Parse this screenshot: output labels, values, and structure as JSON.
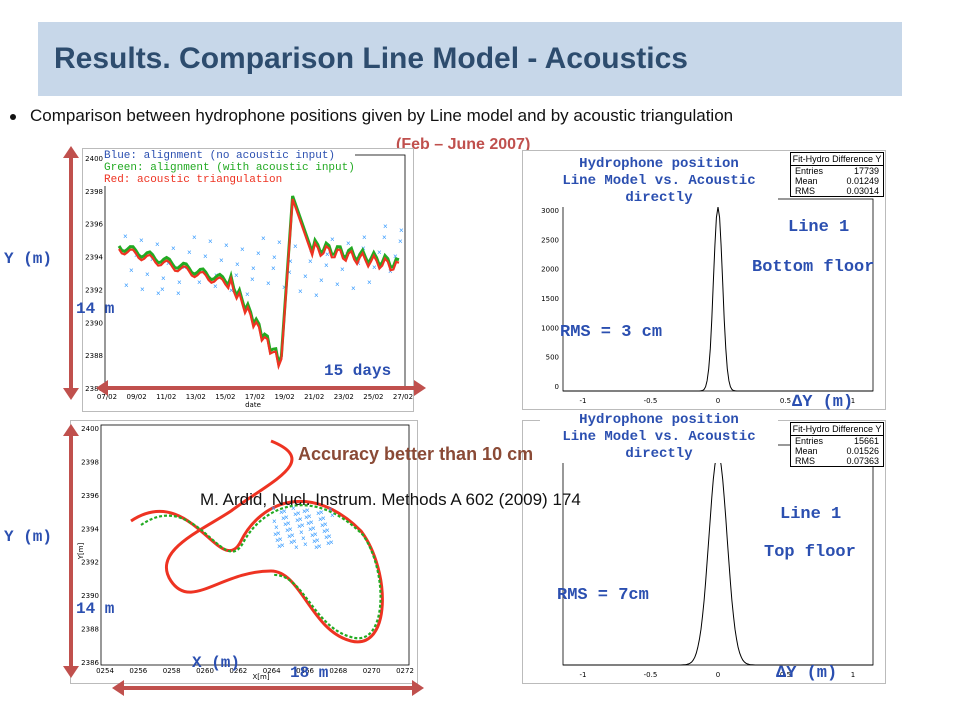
{
  "slide": {
    "title": "Results. Comparison Line Model - Acoustics",
    "bullet": "Comparison between hydrophone positions given by Line model and by acoustic triangulation",
    "period": "(Feb – June 2007)",
    "accuracy": "Accuracy better than 10 cm",
    "citation": "M. Ardid, Nucl. Instrum. Methods A 602 (2009) 174"
  },
  "top_left_plot": {
    "legend": [
      "Blue: alignment (no acoustic input)",
      "Green: alignment (with acoustic input)",
      "Red: acoustic triangulation"
    ],
    "y_label": "Y (m)",
    "span_label": "14 m",
    "days_label": "15 days",
    "x_axis_title": "date",
    "y_ticks": [
      "2400",
      "2398",
      "2396",
      "2394",
      "2392",
      "2390",
      "2388",
      "2386"
    ],
    "x_ticks": [
      "07/02",
      "09/02",
      "11/02",
      "13/02",
      "15/02",
      "17/02",
      "19/02",
      "21/02",
      "23/02",
      "25/02",
      "27/02"
    ]
  },
  "bottom_left_plot": {
    "y_label": "Y (m)",
    "span_label": "14 m",
    "x_label": "X (m)",
    "x_span_label": "18 m",
    "x_axis_title": "X[m]",
    "y_axis_title": "Y[m]",
    "y_ticks": [
      "2400",
      "2398",
      "2396",
      "2394",
      "2392",
      "2390",
      "2388",
      "2386"
    ],
    "x_ticks": [
      "0254",
      "0256",
      "0258",
      "0260",
      "0262",
      "0264",
      "0266",
      "0268",
      "0270",
      "0272"
    ]
  },
  "histogram_top": {
    "caption": [
      "Hydrophone position",
      "Line Model vs. Acoustic",
      "directly"
    ],
    "stats_title": "Fit-Hydro Difference Y",
    "stats": [
      [
        "Entries",
        "17739"
      ],
      [
        "Mean",
        "0.01249"
      ],
      [
        "RMS",
        "0.03014"
      ]
    ],
    "rms_label": "RMS = 3 cm",
    "line_label": "Line 1",
    "floor_label": "Bottom floor",
    "x_label": "∆Y (m)",
    "y_ticks": [
      "3000",
      "2500",
      "2000",
      "1500",
      "1000",
      "500",
      "0"
    ],
    "x_ticks": [
      "-1",
      "-0.5",
      "0",
      "0.5",
      "1"
    ]
  },
  "histogram_bottom": {
    "caption": [
      "Hydrophone position",
      "Line Model vs. Acoustic",
      "directly"
    ],
    "stats_title": "Fit-Hydro Difference Y",
    "stats": [
      [
        "Entries",
        "15661"
      ],
      [
        "Mean",
        "0.01526"
      ],
      [
        "RMS",
        "0.07363"
      ]
    ],
    "rms_label": "RMS = 7cm",
    "line_label": "Line 1",
    "floor_label": "Top floor",
    "x_label": "∆Y (m)",
    "x_ticks": [
      "-1",
      "-0.5",
      "0",
      "0.5",
      "1"
    ]
  },
  "colors": {
    "title_bg": "#c7d7e9",
    "title_text": "#2d4c6e",
    "accent_red": "#c0504d",
    "label_blue": "#2b4fb0",
    "series_blue": "#3399ff",
    "series_green": "#22aa22",
    "series_red": "#ee3322"
  }
}
